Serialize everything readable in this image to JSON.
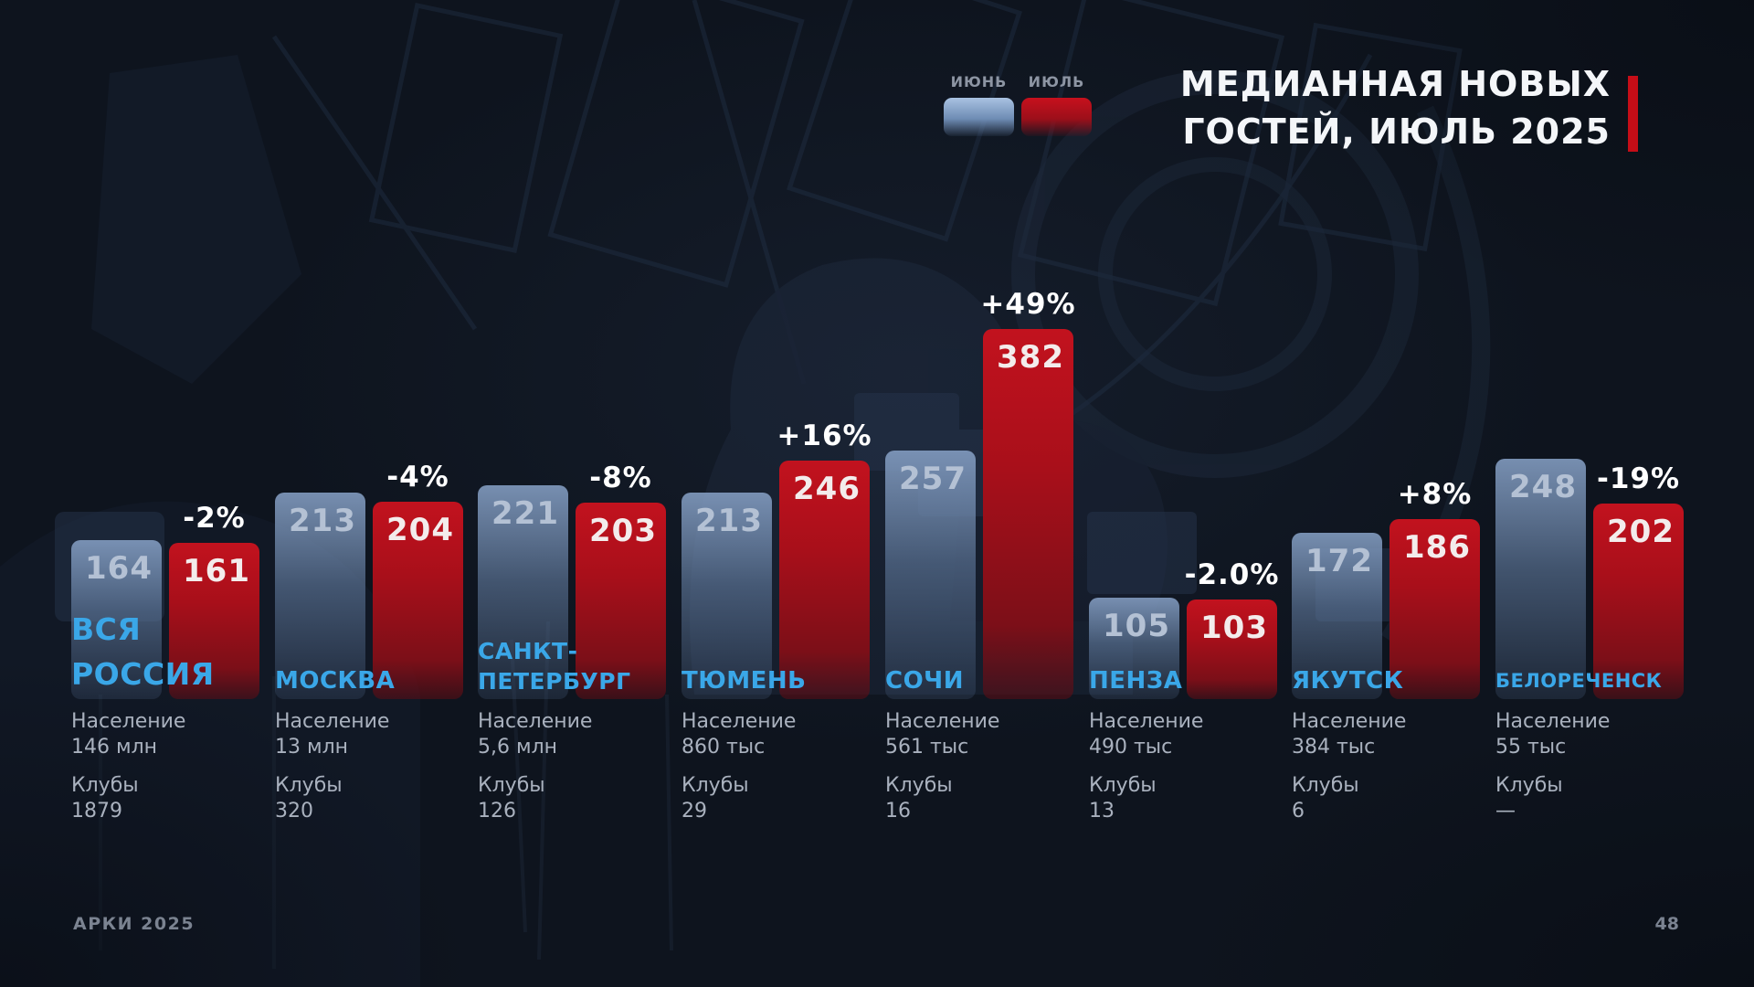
{
  "slide": {
    "title_line1": "МЕДИАННАЯ НОВЫХ",
    "title_line2": "ГОСТЕЙ, ИЮЛЬ 2025",
    "footer_left": "АРКИ 2025",
    "page_number": "48"
  },
  "legend": {
    "june_label": "ИЮНЬ",
    "july_label": "ИЮЛЬ"
  },
  "labels": {
    "population": "Население",
    "clubs": "Клубы"
  },
  "colors": {
    "background": "#0e141e",
    "june_bar": "#8fb0d8",
    "july_bar": "#b5121d",
    "city_label": "#3aa7e8",
    "accent_red": "#c60d17",
    "change_text": "#ffffff",
    "detail_text": "#a9b1be"
  },
  "chart_data": {
    "type": "bar",
    "title": "МЕДИАННАЯ НОВЫХ ГОСТЕЙ, ИЮЛЬ 2025",
    "legend_position": "top",
    "grid": false,
    "ylim": [
      0,
      400
    ],
    "series_names": [
      "ИЮНЬ",
      "ИЮЛЬ"
    ],
    "categories": [
      "ВСЯ РОССИЯ",
      "МОСКВА",
      "САНКТ-ПЕТЕРБУРГ",
      "ТЮМЕНЬ",
      "СОЧИ",
      "ПЕНЗА",
      "ЯКУТСК",
      "БЕЛОРЕЧЕНСК"
    ],
    "groups": [
      {
        "city_lines": [
          "ВСЯ",
          "РОССИЯ"
        ],
        "june": 164,
        "july": 161,
        "change": "-2%",
        "population": "146 млн",
        "clubs": "1879"
      },
      {
        "city_lines": [
          "МОСКВА"
        ],
        "june": 213,
        "july": 204,
        "change": "-4%",
        "population": "13 млн",
        "clubs": "320"
      },
      {
        "city_lines": [
          "САНКТ-",
          "ПЕТЕРБУРГ"
        ],
        "june": 221,
        "july": 203,
        "change": "-8%",
        "population": "5,6 млн",
        "clubs": "126"
      },
      {
        "city_lines": [
          "ТЮМЕНЬ"
        ],
        "june": 213,
        "july": 246,
        "change": "+16%",
        "population": "860 тыс",
        "clubs": "29"
      },
      {
        "city_lines": [
          "СОЧИ"
        ],
        "june": 257,
        "july": 382,
        "change": "+49%",
        "population": "561 тыс",
        "clubs": "16"
      },
      {
        "city_lines": [
          "ПЕНЗА"
        ],
        "june": 105,
        "july": 103,
        "change": "-2.0%",
        "population": "490 тыс",
        "clubs": "13"
      },
      {
        "city_lines": [
          "ЯКУТСК"
        ],
        "june": 172,
        "july": 186,
        "change": "+8%",
        "population": "384 тыс",
        "clubs": "6"
      },
      {
        "city_lines": [
          "БЕЛОРЕЧЕНСК"
        ],
        "june": 248,
        "july": 202,
        "change": "-19%",
        "population": "55 тыс",
        "clubs": "—"
      }
    ]
  }
}
